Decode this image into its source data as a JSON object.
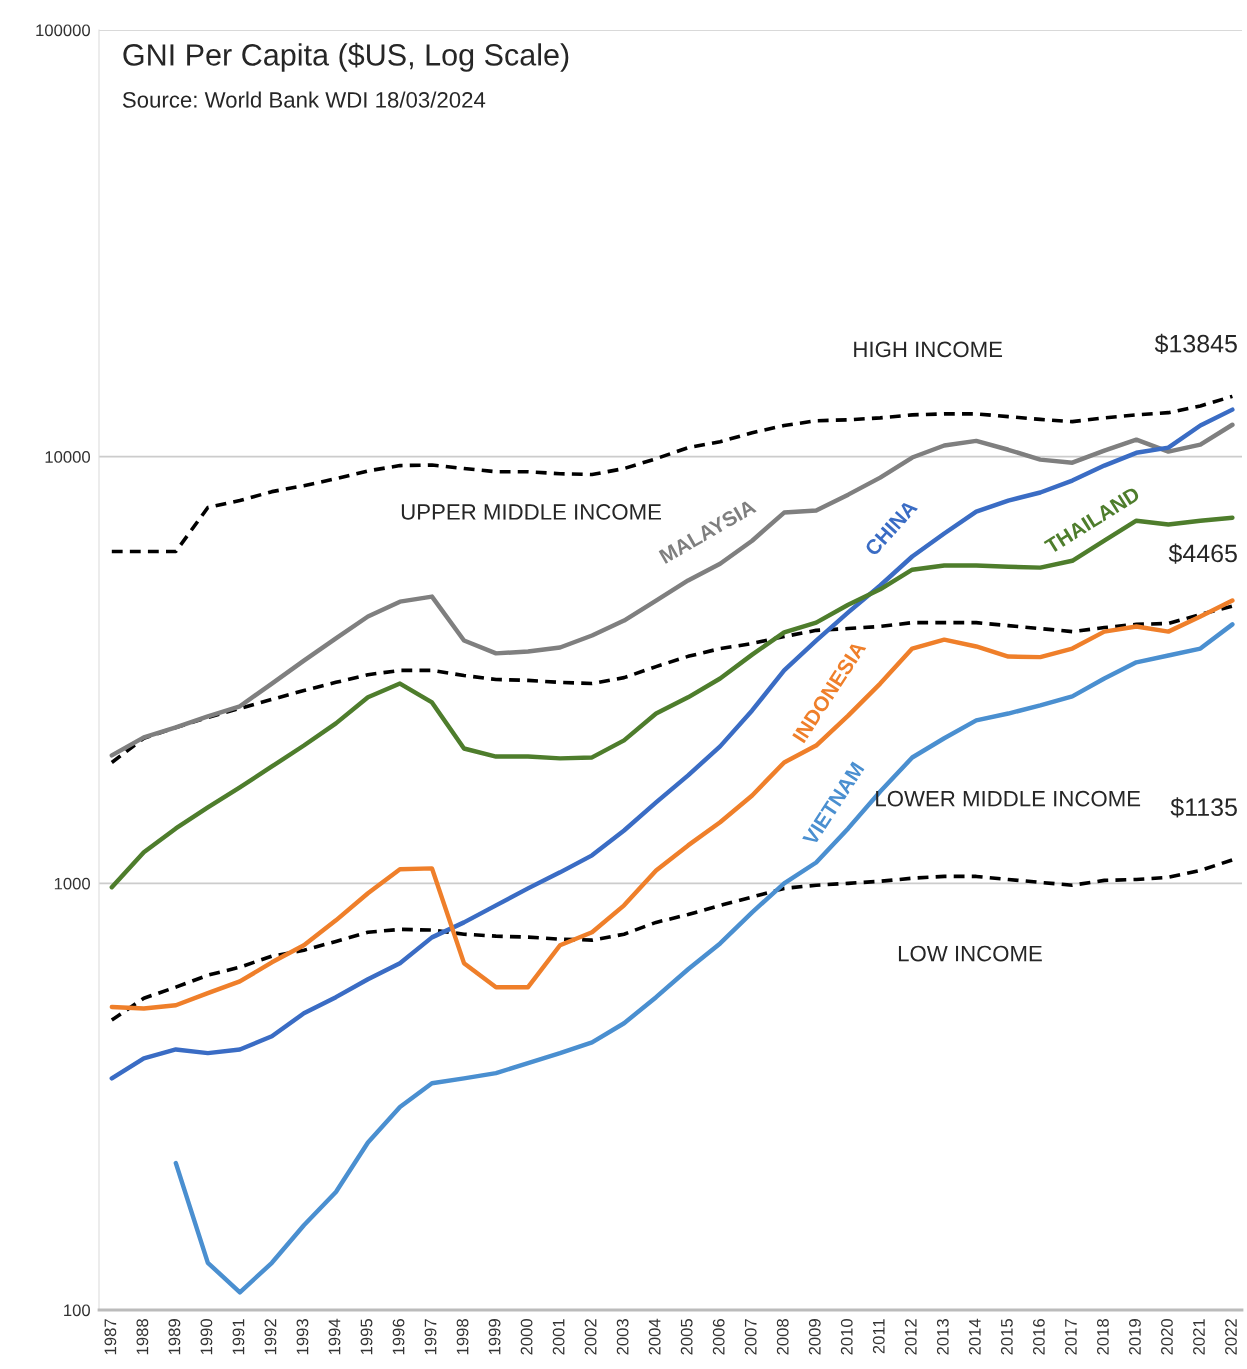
{
  "chart_data": {
    "type": "line",
    "title": "GNI Per Capita ($US, Log Scale)",
    "subtitle": "Source: World Bank WDI 18/03/2024",
    "categories": [
      "1987",
      "1988",
      "1989",
      "1990",
      "1991",
      "1992",
      "1993",
      "1994",
      "1995",
      "1996",
      "1997",
      "1998",
      "1999",
      "2000",
      "2001",
      "2002",
      "2003",
      "2004",
      "2005",
      "2006",
      "2007",
      "2008",
      "2009",
      "2010",
      "2011",
      "2012",
      "2013",
      "2014",
      "2015",
      "2016",
      "2017",
      "2018",
      "2019",
      "2020",
      "2021",
      "2022"
    ],
    "series": [
      {
        "color": "#000000",
        "line_style": "dashed",
        "values": [
          5994,
          5994,
          5994,
          7600,
          7890,
          8280,
          8550,
          8880,
          9260,
          9530,
          9560,
          9380,
          9220,
          9220,
          9120,
          9080,
          9380,
          9890,
          10500,
          10840,
          11380,
          11830,
          12140,
          12200,
          12330,
          12530,
          12600,
          12600,
          12410,
          12230,
          12080,
          12330,
          12530,
          12680,
          13150,
          13845
        ]
      },
      {
        "color": "#000000",
        "line_style": "dashed",
        "values": [
          1920,
          2188,
          2319,
          2449,
          2570,
          2698,
          2831,
          2958,
          3083,
          3155,
          3155,
          3069,
          3005,
          2990,
          2958,
          2939,
          3035,
          3221,
          3404,
          3550,
          3648,
          3787,
          3917,
          3955,
          4000,
          4083,
          4083,
          4083,
          4018,
          3955,
          3890,
          3976,
          4045,
          4065,
          4266,
          4465
        ]
      },
      {
        "color": "#000000",
        "line_style": "dashed",
        "values": [
          478,
          538,
          571,
          609,
          636,
          675,
          697,
          731,
          768,
          780,
          777,
          760,
          752,
          748,
          740,
          736,
          760,
          810,
          845,
          888,
          929,
          973,
          990,
          1000,
          1011,
          1028,
          1038,
          1038,
          1021,
          1005,
          990,
          1016,
          1021,
          1033,
          1072,
          1135
        ]
      },
      {
        "name": "MALAYSIA",
        "color": "#7f7f7f",
        "line_style": "solid",
        "values": [
          1995,
          2198,
          2319,
          2462,
          2600,
          2939,
          3327,
          3750,
          4220,
          4573,
          4700,
          3707,
          3459,
          3493,
          3570,
          3810,
          4130,
          4600,
          5128,
          5610,
          6353,
          7396,
          7480,
          8147,
          8930,
          9954,
          10620,
          10890,
          10380,
          9840,
          9680,
          10330,
          10960,
          10280,
          10670,
          11880
        ]
      },
      {
        "name": "CHINA",
        "color": "#3a6cc4",
        "line_style": "solid",
        "values": [
          349,
          389,
          408,
          400,
          408,
          438,
          496,
          541,
          596,
          650,
          747,
          810,
          888,
          973,
          1061,
          1163,
          1330,
          1548,
          1791,
          2094,
          2542,
          3155,
          3707,
          4314,
          4989,
          5834,
          6607,
          7430,
          7889,
          8241,
          8790,
          9530,
          10210,
          10500,
          11830,
          12890
        ]
      },
      {
        "name": "THAILAND",
        "color": "#4e7d2c",
        "line_style": "solid",
        "values": [
          979,
          1183,
          1345,
          1507,
          1679,
          1879,
          2104,
          2371,
          2729,
          2939,
          2655,
          2070,
          1982,
          1982,
          1963,
          1973,
          2163,
          2500,
          2729,
          3020,
          3436,
          3873,
          4083,
          4498,
          4887,
          5433,
          5559,
          5559,
          5521,
          5495,
          5702,
          6353,
          7079,
          6934,
          7079,
          7194
        ]
      },
      {
        "name": "INDONESIA",
        "color": "#ef7f2a",
        "line_style": "solid",
        "values": [
          513,
          509,
          518,
          553,
          589,
          653,
          716,
          819,
          948,
          1079,
          1084,
          650,
          571,
          571,
          716,
          768,
          888,
          1072,
          1227,
          1390,
          1607,
          1920,
          2104,
          2472,
          2939,
          3550,
          3726,
          3590,
          3400,
          3390,
          3550,
          3890,
          4000,
          3890,
          4220,
          4600
        ]
      },
      {
        "name": "VIETNAM",
        "color": "#4a8fd0",
        "line_style": "solid",
        "values": [
          null,
          null,
          221,
          129,
          110,
          129,
          158,
          189,
          247,
          299,
          340,
          349,
          359,
          379,
          400,
          424,
          470,
          541,
          629,
          723,
          855,
          1000,
          1119,
          1345,
          1641,
          1972,
          2188,
          2410,
          2500,
          2612,
          2742,
          3020,
          3296,
          3420,
          3550,
          4045
        ]
      }
    ],
    "log": true,
    "ylim": [
      100,
      100000
    ],
    "yticks": [
      {
        "value": 100,
        "label": "100"
      },
      {
        "value": 1000,
        "label": "1000"
      },
      {
        "value": 10000,
        "label": "10000"
      },
      {
        "value": 100000,
        "label": "100000"
      }
    ],
    "grid": "y",
    "legend": false,
    "marker": "none",
    "annotations": [
      "HIGH INCOME",
      "UPPER MIDDLE INCOME",
      "LOWER MIDDLE INCOME",
      "LOW INCOME",
      {
        "text": "$13845",
        "x": "2022",
        "y": 13845
      },
      {
        "text": "$4465",
        "x": "2022",
        "y": 4465
      },
      {
        "text": "$1135",
        "x": "2022",
        "y": 1135
      }
    ]
  }
}
